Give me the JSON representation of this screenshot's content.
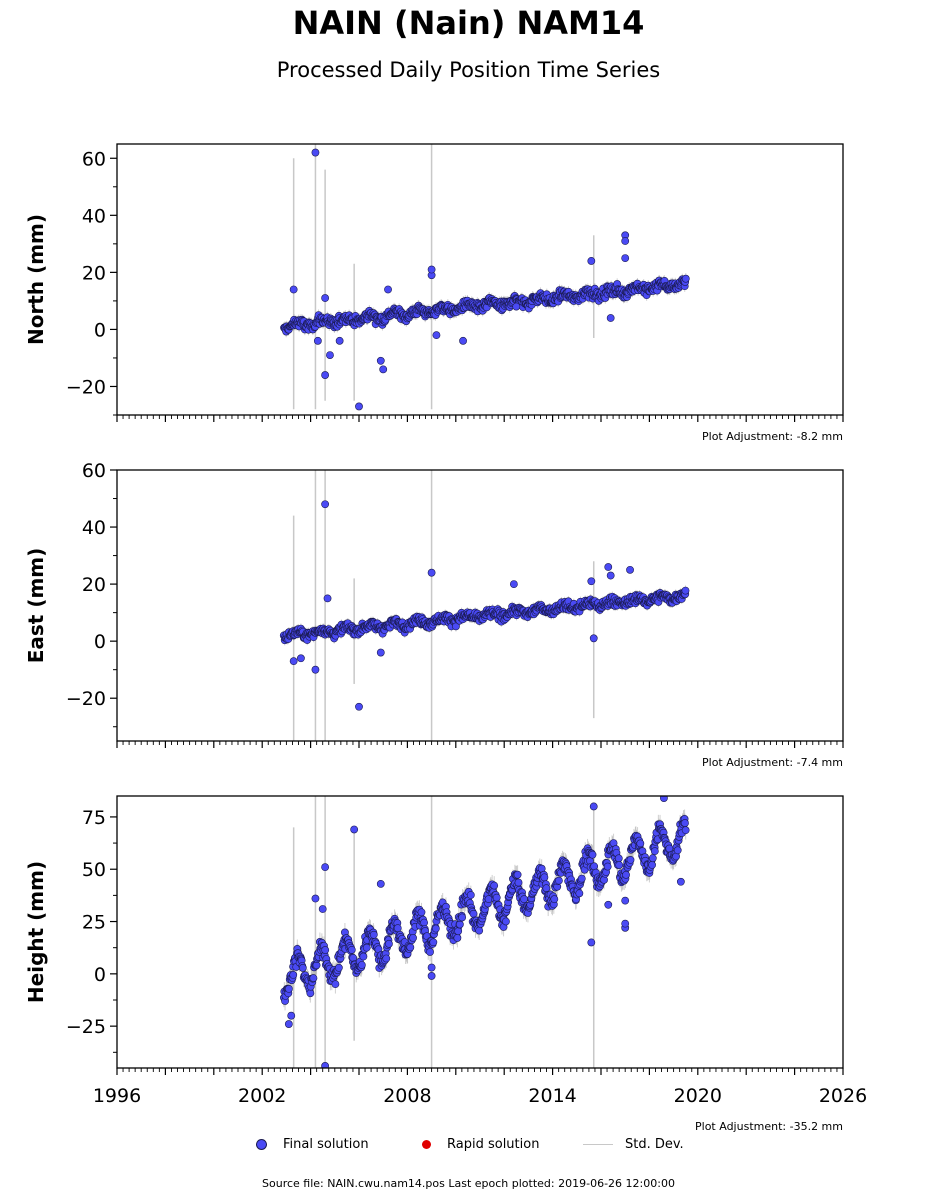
{
  "title": "NAIN (Nain) NAM14",
  "subtitle": "Processed Daily Position Time Series",
  "footer": "Source file: NAIN.cwu.nam14.pos  Last epoch plotted: 2019-06-26 12:00:00",
  "legend": {
    "final": "Final solution",
    "rapid": "Rapid solution",
    "std": "Std. Dev."
  },
  "colors": {
    "final": "#4a4af4",
    "final_edge": "#1a1a50",
    "rapid": "#e00000",
    "std": "#c8c8c8"
  },
  "chart_data": [
    {
      "type": "scatter",
      "ylabel": "North (mm)",
      "adjustment": "Plot Adjustment: -8.2 mm",
      "xlim": [
        1996,
        2026
      ],
      "ylim": [
        -30,
        65
      ],
      "yticks": [
        -20,
        0,
        20,
        40,
        60
      ],
      "xticks": [],
      "trend": {
        "x": [
          2002.9,
          2019.5
        ],
        "y": [
          1,
          16
        ],
        "noise": 2.2,
        "seasonal": 1.0
      },
      "outliers": [
        [
          2003.3,
          14
        ],
        [
          2004.2,
          62
        ],
        [
          2004.3,
          -4
        ],
        [
          2004.6,
          -16
        ],
        [
          2004.6,
          11
        ],
        [
          2004.8,
          -9
        ],
        [
          2005.2,
          -4
        ],
        [
          2006.0,
          -27
        ],
        [
          2006.9,
          -11
        ],
        [
          2007.0,
          -14
        ],
        [
          2007.2,
          14
        ],
        [
          2009.0,
          19
        ],
        [
          2009.0,
          21
        ],
        [
          2009.2,
          -2
        ],
        [
          2010.3,
          -4
        ],
        [
          2012.5,
          8
        ],
        [
          2015.6,
          24
        ],
        [
          2016.4,
          4
        ],
        [
          2017.0,
          33
        ],
        [
          2017.0,
          31
        ],
        [
          2017.0,
          25
        ]
      ],
      "std_lines": [
        [
          2003.3,
          -28,
          60
        ],
        [
          2004.2,
          -28,
          65
        ],
        [
          2004.6,
          -25,
          56
        ],
        [
          2005.8,
          -25,
          23
        ],
        [
          2009.0,
          -28,
          65
        ],
        [
          2015.7,
          -3,
          33
        ]
      ]
    },
    {
      "type": "scatter",
      "ylabel": "East (mm)",
      "adjustment": "Plot Adjustment: -7.4 mm",
      "xlim": [
        1996,
        2026
      ],
      "ylim": [
        -35,
        60
      ],
      "yticks": [
        -20,
        0,
        20,
        40,
        60
      ],
      "xticks": [],
      "trend": {
        "x": [
          2002.9,
          2019.5
        ],
        "y": [
          2,
          16
        ],
        "noise": 2.0,
        "seasonal": 0.8
      },
      "outliers": [
        [
          2003.3,
          -7
        ],
        [
          2003.6,
          -6
        ],
        [
          2004.2,
          -10
        ],
        [
          2004.6,
          48
        ],
        [
          2004.7,
          15
        ],
        [
          2006.0,
          -23
        ],
        [
          2006.9,
          -4
        ],
        [
          2009.0,
          24
        ],
        [
          2012.4,
          20
        ],
        [
          2015.6,
          21
        ],
        [
          2015.7,
          1
        ],
        [
          2016.3,
          26
        ],
        [
          2016.4,
          23
        ],
        [
          2017.2,
          25
        ]
      ],
      "std_lines": [
        [
          2003.3,
          -35,
          44
        ],
        [
          2004.2,
          -35,
          60
        ],
        [
          2004.6,
          -35,
          60
        ],
        [
          2005.8,
          -15,
          22
        ],
        [
          2009.0,
          -35,
          60
        ],
        [
          2015.7,
          -27,
          28
        ]
      ]
    },
    {
      "type": "scatter",
      "ylabel": "Height (mm)",
      "adjustment": "Plot Adjustment: -35.2 mm",
      "xlim": [
        1996,
        2026
      ],
      "ylim": [
        -45,
        85
      ],
      "yticks": [
        -25,
        0,
        25,
        50,
        75
      ],
      "xticks": [
        1996,
        2002,
        2008,
        2014,
        2020,
        2026
      ],
      "trend": {
        "x": [
          2002.9,
          2019.5
        ],
        "y": [
          -2,
          65
        ],
        "noise": 5.0,
        "seasonal": 8.0
      },
      "outliers": [
        [
          2003.1,
          -24
        ],
        [
          2003.2,
          -20
        ],
        [
          2004.2,
          36
        ],
        [
          2004.5,
          31
        ],
        [
          2004.6,
          51
        ],
        [
          2004.6,
          -44
        ],
        [
          2005.8,
          69
        ],
        [
          2006.9,
          43
        ],
        [
          2009.0,
          -1
        ],
        [
          2009.0,
          3
        ],
        [
          2015.6,
          15
        ],
        [
          2015.7,
          80
        ],
        [
          2016.3,
          33
        ],
        [
          2017.0,
          35
        ],
        [
          2017.0,
          22
        ],
        [
          2017.0,
          24
        ],
        [
          2018.6,
          84
        ],
        [
          2019.3,
          44
        ]
      ],
      "std_lines": [
        [
          2003.3,
          -45,
          70
        ],
        [
          2004.2,
          -45,
          85
        ],
        [
          2004.6,
          -45,
          85
        ],
        [
          2005.8,
          -32,
          69
        ],
        [
          2009.0,
          -45,
          85
        ],
        [
          2015.7,
          -45,
          80
        ]
      ]
    }
  ]
}
